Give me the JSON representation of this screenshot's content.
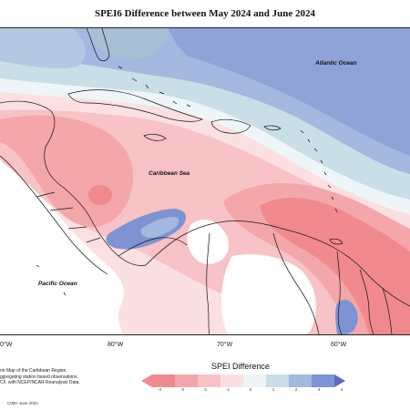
{
  "title": "SPEI6 Difference between May 2024 and June 2024",
  "labels": {
    "atlantic": "Atlantic Ocean",
    "caribbean": "Caribbean Sea",
    "pacific": "Pacific Ocean"
  },
  "longitudes": [
    "0°W",
    "80°W",
    "70°W",
    "60°W"
  ],
  "credit_lines": [
    "on Map of the Caribbean Region.",
    "ggregating station based observations,",
    "CF, with NCEP/NCAR Reanalysis Data."
  ],
  "credit_date": "CIMH June 2024",
  "legend": {
    "title": "SPEI Difference",
    "ticks": [
      "-4",
      "-3",
      "-2",
      "-1",
      "0",
      "1",
      "2",
      "3",
      "4"
    ],
    "colors": [
      "#f08a8f",
      "#f4a7ab",
      "#f8c3c6",
      "#fbe0e2",
      "#eef5f8",
      "#c9dee6",
      "#a4b8e0",
      "#7f93d2",
      "#5a6bb8"
    ]
  },
  "colors": {
    "strong_dry": "#f08a8f",
    "dry": "#f4a7ab",
    "light_dry": "#f8c3c6",
    "very_light_dry": "#fbe0e2",
    "neutral": "#eef5f8",
    "light_wet": "#c9dee6",
    "wet": "#a4b8e0",
    "very_wet": "#7f93d2"
  }
}
